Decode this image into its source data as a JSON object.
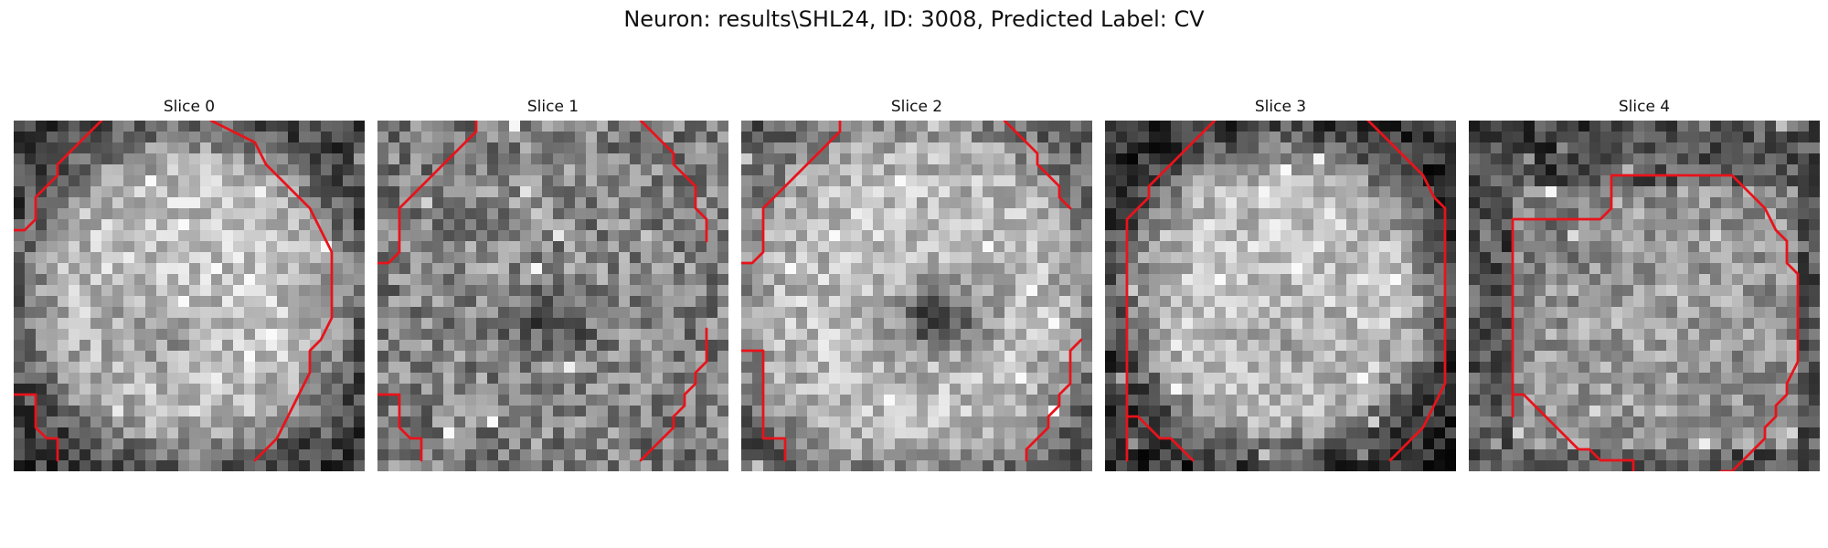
{
  "figure": {
    "title": "Neuron: results\\SHL24, ID: 3008, Predicted Label: CV"
  },
  "colors": {
    "contour": "#e8131b",
    "background": "#ffffff"
  },
  "slices": [
    {
      "label": "Slice 0",
      "contours": [
        [
          [
            0,
            10
          ],
          [
            1,
            10
          ],
          [
            2,
            9
          ],
          [
            2,
            7
          ],
          [
            3,
            6
          ],
          [
            4,
            5
          ],
          [
            4,
            4
          ],
          [
            5,
            3
          ],
          [
            6,
            2
          ],
          [
            7,
            1
          ],
          [
            8,
            0
          ]
        ],
        [
          [
            18,
            0
          ],
          [
            20,
            1
          ],
          [
            22,
            2
          ],
          [
            23,
            4
          ],
          [
            25,
            6
          ],
          [
            27,
            8
          ],
          [
            28,
            10
          ],
          [
            29,
            12
          ],
          [
            29,
            14
          ],
          [
            29,
            16
          ],
          [
            29,
            18
          ],
          [
            28,
            20
          ],
          [
            27,
            21
          ],
          [
            27,
            23
          ],
          [
            26,
            25
          ],
          [
            25,
            27
          ],
          [
            24,
            29
          ],
          [
            23,
            30
          ],
          [
            22,
            31
          ]
        ],
        [
          [
            0,
            25
          ],
          [
            2,
            25
          ],
          [
            2,
            27
          ],
          [
            2,
            28
          ],
          [
            3,
            29
          ],
          [
            4,
            29
          ],
          [
            4,
            30
          ],
          [
            4,
            31
          ]
        ]
      ]
    },
    {
      "label": "Slice 1",
      "contours": [
        [
          [
            0,
            13
          ],
          [
            1,
            13
          ],
          [
            2,
            12
          ],
          [
            2,
            10
          ],
          [
            2,
            8
          ],
          [
            3,
            7
          ],
          [
            4,
            6
          ],
          [
            5,
            5
          ],
          [
            6,
            4
          ],
          [
            7,
            3
          ],
          [
            8,
            2
          ],
          [
            9,
            1
          ],
          [
            9,
            0
          ]
        ],
        [
          [
            24,
            0
          ],
          [
            25,
            1
          ],
          [
            26,
            2
          ],
          [
            27,
            3
          ],
          [
            27,
            4
          ],
          [
            28,
            5
          ],
          [
            29,
            6
          ],
          [
            29,
            7
          ],
          [
            29,
            8
          ],
          [
            30,
            9
          ],
          [
            30,
            10
          ],
          [
            30,
            11
          ]
        ],
        [
          [
            0,
            25
          ],
          [
            2,
            25
          ],
          [
            2,
            27
          ],
          [
            2,
            28
          ],
          [
            3,
            29
          ],
          [
            4,
            29
          ],
          [
            4,
            30
          ],
          [
            4,
            31
          ]
        ],
        [
          [
            24,
            31
          ],
          [
            25,
            30
          ],
          [
            26,
            29
          ],
          [
            27,
            28
          ],
          [
            27,
            27
          ],
          [
            28,
            26
          ],
          [
            28,
            25
          ],
          [
            29,
            24
          ],
          [
            29,
            23
          ],
          [
            30,
            22
          ],
          [
            30,
            21
          ],
          [
            30,
            20
          ],
          [
            30,
            19
          ]
        ]
      ]
    },
    {
      "label": "Slice 2",
      "contours": [
        [
          [
            0,
            13
          ],
          [
            1,
            13
          ],
          [
            2,
            12
          ],
          [
            2,
            10
          ],
          [
            2,
            8
          ],
          [
            3,
            7
          ],
          [
            4,
            6
          ],
          [
            5,
            5
          ],
          [
            6,
            4
          ],
          [
            7,
            3
          ],
          [
            8,
            2
          ],
          [
            9,
            1
          ],
          [
            9,
            0
          ]
        ],
        [
          [
            24,
            0
          ],
          [
            25,
            1
          ],
          [
            26,
            2
          ],
          [
            27,
            3
          ],
          [
            27,
            4
          ],
          [
            28,
            5
          ],
          [
            29,
            6
          ],
          [
            29,
            7
          ],
          [
            30,
            8
          ]
        ],
        [
          [
            0,
            21
          ],
          [
            2,
            21
          ],
          [
            2,
            23
          ],
          [
            2,
            25
          ],
          [
            2,
            27
          ],
          [
            2,
            29
          ],
          [
            3,
            29
          ],
          [
            4,
            29
          ],
          [
            4,
            30
          ],
          [
            4,
            31
          ]
        ],
        [
          [
            26,
            31
          ],
          [
            26,
            30
          ],
          [
            27,
            29
          ],
          [
            28,
            28
          ],
          [
            28,
            27
          ],
          [
            29,
            26
          ],
          [
            29,
            25
          ],
          [
            30,
            24
          ],
          [
            30,
            23
          ],
          [
            30,
            22
          ],
          [
            30,
            21
          ],
          [
            31,
            20
          ]
        ]
      ]
    },
    {
      "label": "Slice 3",
      "contours": [
        [
          [
            2,
            31
          ],
          [
            2,
            30
          ],
          [
            2,
            29
          ],
          [
            2,
            27
          ],
          [
            2,
            25
          ],
          [
            2,
            23
          ],
          [
            2,
            21
          ],
          [
            2,
            19
          ],
          [
            2,
            17
          ],
          [
            2,
            15
          ],
          [
            2,
            13
          ],
          [
            2,
            11
          ],
          [
            2,
            9
          ],
          [
            3,
            8
          ],
          [
            4,
            7
          ],
          [
            4,
            6
          ],
          [
            5,
            5
          ],
          [
            6,
            4
          ],
          [
            7,
            3
          ],
          [
            8,
            2
          ],
          [
            9,
            1
          ],
          [
            10,
            0
          ]
        ],
        [
          [
            24,
            0
          ],
          [
            25,
            1
          ],
          [
            26,
            2
          ],
          [
            27,
            3
          ],
          [
            28,
            4
          ],
          [
            29,
            5
          ],
          [
            30,
            7
          ],
          [
            31,
            8
          ],
          [
            31,
            10
          ],
          [
            31,
            12
          ],
          [
            31,
            14
          ],
          [
            31,
            16
          ],
          [
            31,
            18
          ],
          [
            31,
            20
          ],
          [
            31,
            22
          ],
          [
            31,
            24
          ],
          [
            30,
            26
          ],
          [
            29,
            28
          ],
          [
            28,
            29
          ],
          [
            27,
            30
          ],
          [
            26,
            31
          ]
        ],
        [
          [
            2,
            27
          ],
          [
            3,
            27
          ],
          [
            4,
            28
          ],
          [
            5,
            29
          ],
          [
            6,
            29
          ],
          [
            7,
            30
          ],
          [
            8,
            31
          ]
        ]
      ]
    },
    {
      "label": "Slice 4",
      "contours": [
        [
          [
            4,
            27
          ],
          [
            4,
            25
          ],
          [
            4,
            23
          ],
          [
            4,
            21
          ],
          [
            4,
            19
          ],
          [
            4,
            17
          ],
          [
            4,
            15
          ],
          [
            4,
            13
          ],
          [
            4,
            11
          ],
          [
            4,
            9
          ],
          [
            5,
            9
          ],
          [
            6,
            9
          ],
          [
            7,
            9
          ],
          [
            8,
            9
          ],
          [
            9,
            9
          ],
          [
            10,
            9
          ],
          [
            11,
            9
          ],
          [
            12,
            9
          ],
          [
            13,
            8
          ],
          [
            13,
            6
          ],
          [
            13,
            5
          ],
          [
            14,
            5
          ],
          [
            16,
            5
          ],
          [
            18,
            5
          ],
          [
            20,
            5
          ],
          [
            22,
            5
          ],
          [
            24,
            5
          ],
          [
            25,
            6
          ],
          [
            26,
            7
          ],
          [
            27,
            8
          ],
          [
            28,
            10
          ],
          [
            29,
            11
          ],
          [
            29,
            13
          ],
          [
            30,
            14
          ],
          [
            30,
            16
          ],
          [
            30,
            18
          ],
          [
            30,
            20
          ],
          [
            30,
            22
          ],
          [
            29,
            24
          ],
          [
            29,
            25
          ],
          [
            28,
            26
          ],
          [
            28,
            27
          ],
          [
            27,
            28
          ],
          [
            27,
            29
          ],
          [
            26,
            30
          ],
          [
            25,
            31
          ],
          [
            24,
            32
          ],
          [
            23,
            32
          ],
          [
            22,
            33
          ],
          [
            21,
            33
          ]
        ],
        [
          [
            4,
            25
          ],
          [
            5,
            25
          ],
          [
            6,
            26
          ],
          [
            7,
            27
          ],
          [
            8,
            28
          ],
          [
            9,
            29
          ],
          [
            10,
            30
          ],
          [
            11,
            30
          ],
          [
            12,
            31
          ],
          [
            13,
            31
          ],
          [
            14,
            31
          ],
          [
            15,
            31
          ],
          [
            15,
            32
          ],
          [
            15,
            33
          ]
        ]
      ]
    }
  ]
}
